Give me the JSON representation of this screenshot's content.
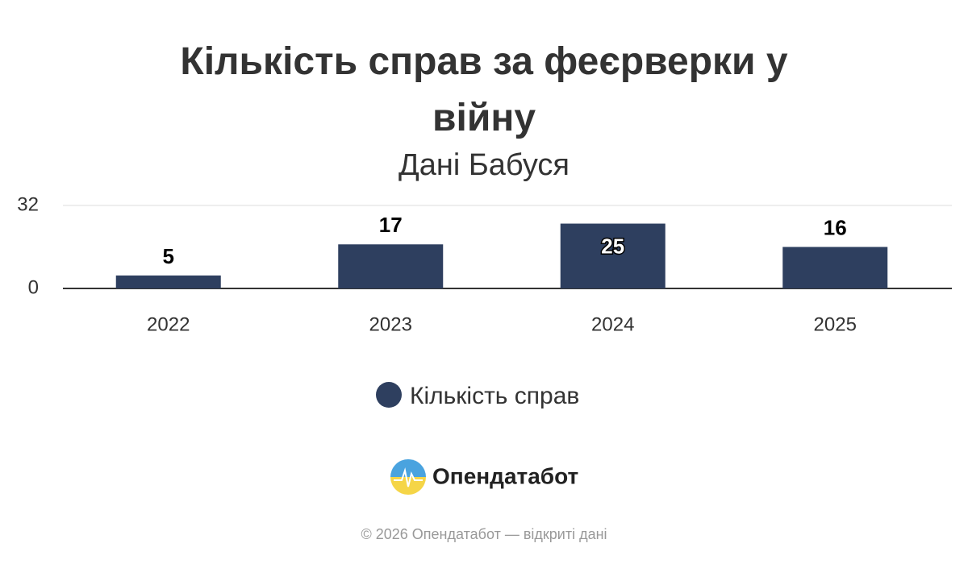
{
  "chart_data": {
    "type": "bar",
    "title": "Кількість справ за феєрверки у війну",
    "subtitle": "Дані Бабуся",
    "categories": [
      "2022",
      "2023",
      "2024",
      "2025"
    ],
    "series": [
      {
        "name": "Кількість справ",
        "color": "#2e3f5f",
        "values": [
          5,
          17,
          25,
          16
        ]
      }
    ],
    "ylim": [
      0,
      32
    ],
    "yticks": [
      0,
      32
    ],
    "grid": true
  },
  "brand": "Опендатабот",
  "footer": "© 2026 Опендатабот — відкриті дані"
}
